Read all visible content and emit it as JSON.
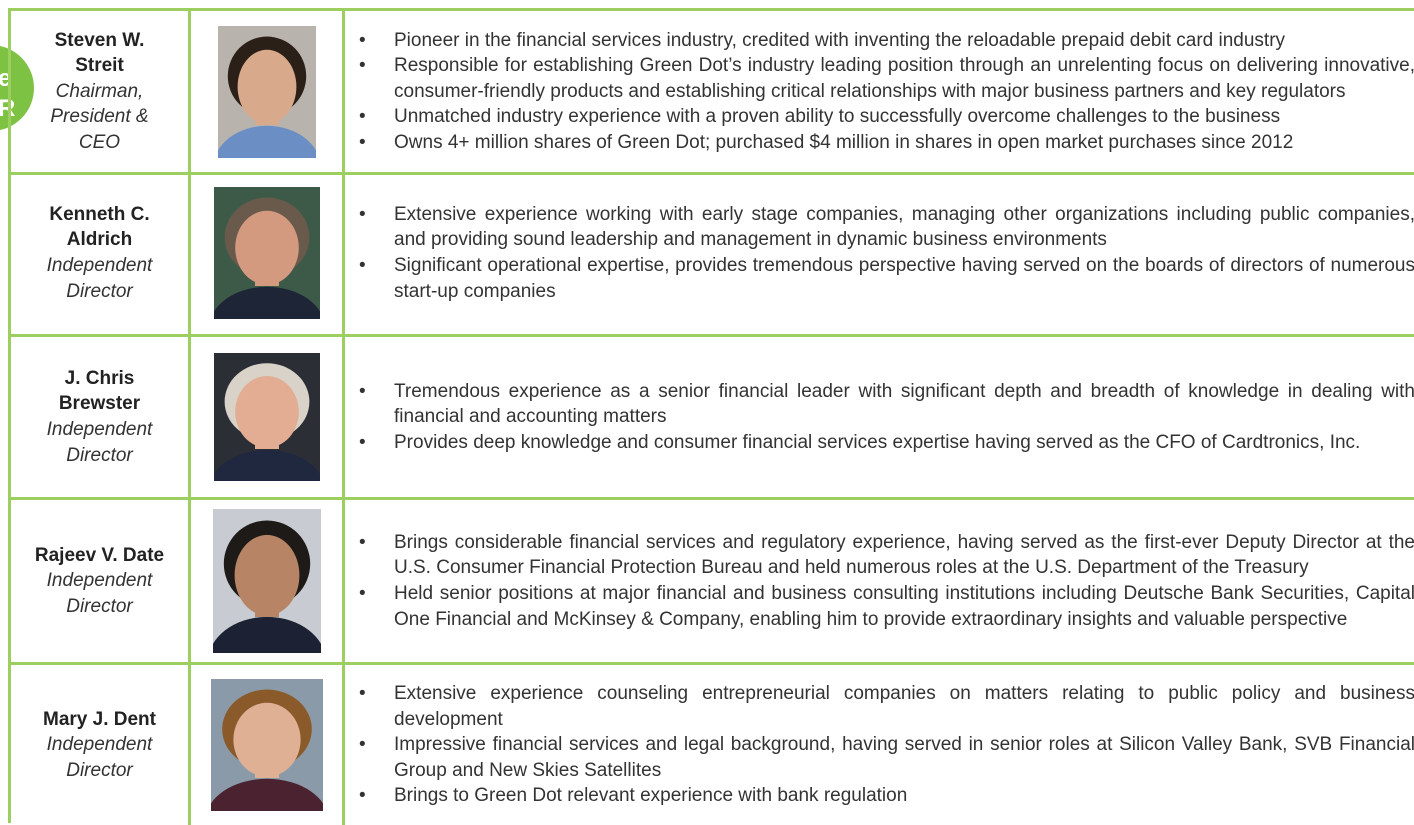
{
  "badge": [
    "e",
    "R"
  ],
  "rows": [
    {
      "name": [
        "Steven W.",
        "Streit"
      ],
      "title": [
        "Chairman,",
        "President &",
        "CEO"
      ],
      "bullets": [
        "Pioneer in the financial services industry, credited with inventing the reloadable prepaid debit card industry",
        "Responsible for establishing Green Dot’s industry leading position through an unrelenting focus on delivering innovative, consumer-friendly products and establishing critical relationships with major business partners and key regulators",
        "Unmatched industry experience with a proven ability to successfully overcome challenges to the business",
        "Owns 4+ million shares of Green Dot; purchased $4 million in shares in open market purchases since 2012"
      ]
    },
    {
      "name": [
        "Kenneth C.",
        "Aldrich"
      ],
      "title": [
        "Independent",
        "Director"
      ],
      "bullets": [
        "Extensive experience working with early stage companies, managing other organizations including public companies, and providing sound leadership and management in dynamic business environments",
        "Significant operational expertise, provides tremendous perspective having served on the boards of directors of numerous start-up companies"
      ]
    },
    {
      "name": [
        "J. Chris",
        "Brewster"
      ],
      "title": [
        "Independent",
        "Director"
      ],
      "bullets": [
        "Tremendous experience as a senior financial leader with significant depth and breadth of knowledge in dealing with financial and accounting matters",
        "Provides deep knowledge and consumer financial services expertise having served as the CFO of Cardtronics, Inc."
      ]
    },
    {
      "name": [
        "Rajeev V. Date"
      ],
      "title": [
        "Independent",
        "Director"
      ],
      "bullets": [
        "Brings considerable financial services and regulatory experience, having served as the first-ever Deputy Director at the U.S. Consumer Financial Protection Bureau and held numerous roles at the U.S. Department of the Treasury",
        "Held senior positions at major financial and business consulting institutions including Deutsche Bank Securities, Capital One Financial and McKinsey & Company, enabling him to provide extraordinary insights and valuable perspective"
      ]
    },
    {
      "name": [
        "Mary J. Dent"
      ],
      "title": [
        "Independent",
        "Director"
      ],
      "bullets": [
        "Extensive experience counseling entrepreneurial companies on matters relating to public policy and business development",
        "Impressive financial services and legal background, having served in senior roles at Silicon Valley Bank, SVB Financial Group and New Skies Satellites",
        "Brings to Green Dot relevant experience with bank regulation"
      ]
    }
  ]
}
